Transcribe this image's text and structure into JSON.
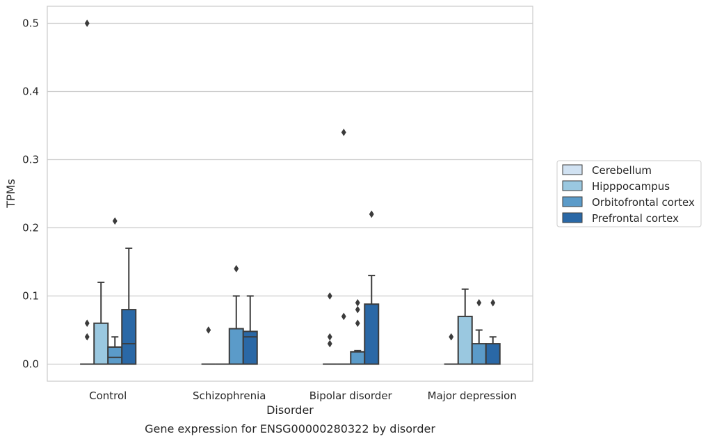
{
  "chart_data": {
    "type": "box",
    "title": "",
    "caption": "Gene expression for ENSG00000280322 by disorder",
    "xlabel": "Disorder",
    "ylabel": "TPMs",
    "ylim": [
      -0.025,
      0.525
    ],
    "yticks": [
      0.0,
      0.1,
      0.2,
      0.3,
      0.4,
      0.5
    ],
    "ytick_labels": [
      "0.0",
      "0.1",
      "0.2",
      "0.3",
      "0.4",
      "0.5"
    ],
    "grid": "horizontal",
    "legend_position": "right",
    "categories": [
      "Control",
      "Schizophrenia",
      "Bipolar disorder",
      "Major depression"
    ],
    "series": [
      {
        "name": "Cerebellum",
        "color": "#d1e2f2",
        "boxes": [
          {
            "q1": 0.0,
            "median": 0.0,
            "q3": 0.0,
            "whisker_low": 0.0,
            "whisker_high": 0.0,
            "outliers": [
              0.06,
              0.04,
              0.5
            ]
          },
          {
            "q1": 0.0,
            "median": 0.0,
            "q3": 0.0,
            "whisker_low": 0.0,
            "whisker_high": 0.0,
            "outliers": [
              0.05
            ]
          },
          {
            "q1": 0.0,
            "median": 0.0,
            "q3": 0.0,
            "whisker_low": 0.0,
            "whisker_high": 0.0,
            "outliers": [
              0.1,
              0.04,
              0.03
            ]
          },
          {
            "q1": 0.0,
            "median": 0.0,
            "q3": 0.0,
            "whisker_low": 0.0,
            "whisker_high": 0.0,
            "outliers": [
              0.04
            ]
          }
        ]
      },
      {
        "name": "Hipppocampus",
        "color": "#9ac8e0",
        "boxes": [
          {
            "q1": 0.0,
            "median": 0.0,
            "q3": 0.06,
            "whisker_low": 0.0,
            "whisker_high": 0.12,
            "outliers": []
          },
          {
            "q1": 0.0,
            "median": 0.0,
            "q3": 0.0,
            "whisker_low": 0.0,
            "whisker_high": 0.0,
            "outliers": []
          },
          {
            "q1": 0.0,
            "median": 0.0,
            "q3": 0.0,
            "whisker_low": 0.0,
            "whisker_high": 0.0,
            "outliers": [
              0.07,
              0.34
            ]
          },
          {
            "q1": 0.0,
            "median": 0.0,
            "q3": 0.07,
            "whisker_low": 0.0,
            "whisker_high": 0.11,
            "outliers": []
          }
        ]
      },
      {
        "name": "Orbitofrontal cortex",
        "color": "#5b9bc9",
        "boxes": [
          {
            "q1": 0.0,
            "median": 0.01,
            "q3": 0.025,
            "whisker_low": 0.0,
            "whisker_high": 0.04,
            "outliers": [
              0.21
            ]
          },
          {
            "q1": 0.0,
            "median": 0.0,
            "q3": 0.052,
            "whisker_low": 0.0,
            "whisker_high": 0.1,
            "outliers": [
              0.14
            ]
          },
          {
            "q1": 0.0,
            "median": 0.0,
            "q3": 0.018,
            "whisker_low": 0.0,
            "whisker_high": 0.02,
            "outliers": [
              0.06,
              0.08,
              0.09
            ]
          },
          {
            "q1": 0.0,
            "median": 0.0,
            "q3": 0.03,
            "whisker_low": 0.0,
            "whisker_high": 0.05,
            "outliers": [
              0.09
            ]
          }
        ]
      },
      {
        "name": "Prefrontal cortex",
        "color": "#2a68a6",
        "boxes": [
          {
            "q1": 0.0,
            "median": 0.03,
            "q3": 0.08,
            "whisker_low": 0.0,
            "whisker_high": 0.17,
            "outliers": []
          },
          {
            "q1": 0.0,
            "median": 0.04,
            "q3": 0.048,
            "whisker_low": 0.0,
            "whisker_high": 0.1,
            "outliers": []
          },
          {
            "q1": 0.0,
            "median": 0.0,
            "q3": 0.088,
            "whisker_low": 0.0,
            "whisker_high": 0.13,
            "outliers": [
              0.22
            ]
          },
          {
            "q1": 0.0,
            "median": 0.0,
            "q3": 0.03,
            "whisker_low": 0.0,
            "whisker_high": 0.04,
            "outliers": [
              0.09
            ]
          }
        ]
      }
    ]
  }
}
